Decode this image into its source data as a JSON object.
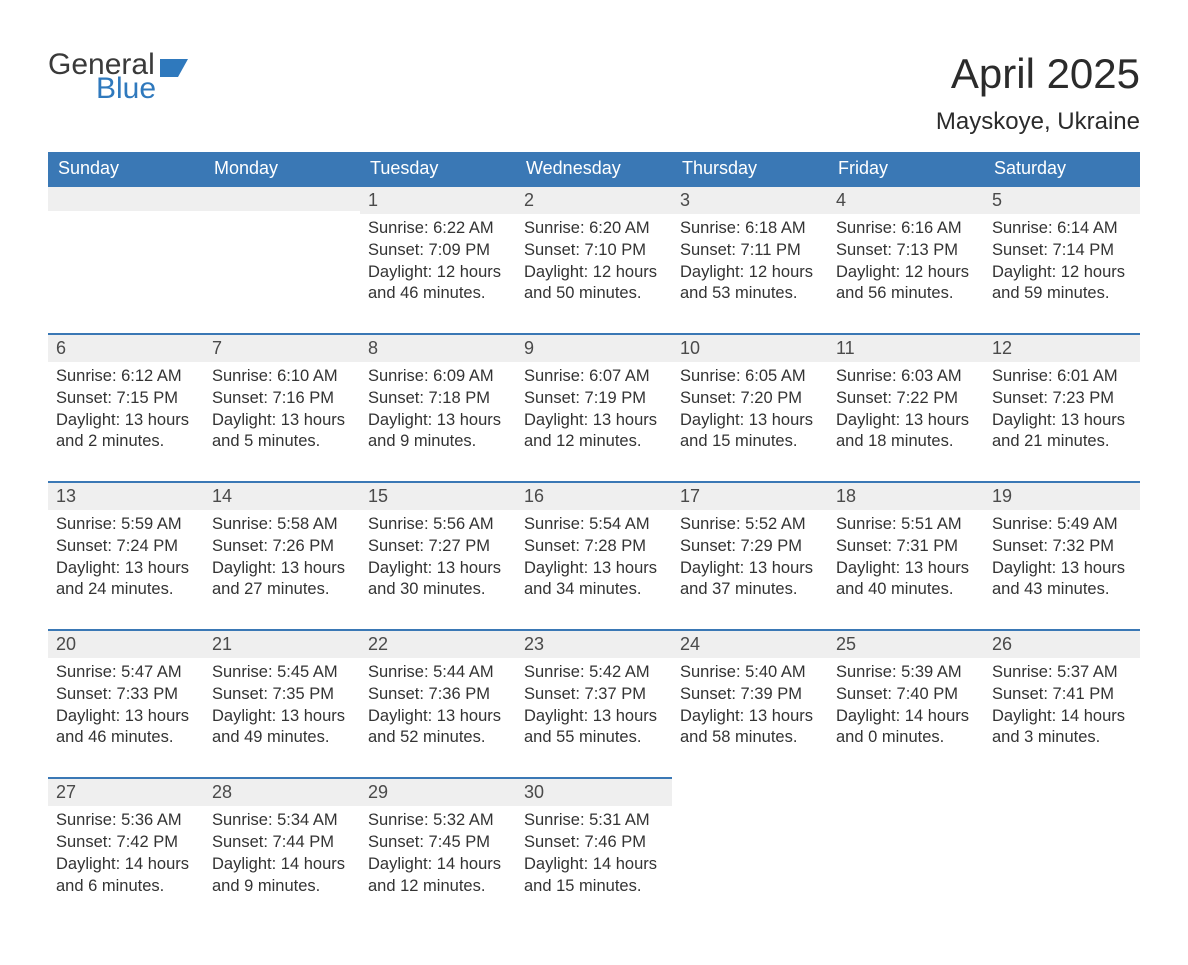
{
  "brand": {
    "word1": "General",
    "word2": "Blue"
  },
  "title": "April 2025",
  "location": "Mayskoye, Ukraine",
  "colors": {
    "header_bg": "#3a78b5",
    "header_text": "#ffffff",
    "daynum_bar_bg": "#efefef",
    "daynum_bar_border": "#3a78b5",
    "body_text": "#333333",
    "logo_general": "#3a3a3a",
    "logo_blue": "#2f79bd",
    "page_bg": "#ffffff"
  },
  "day_headers": [
    "Sunday",
    "Monday",
    "Tuesday",
    "Wednesday",
    "Thursday",
    "Friday",
    "Saturday"
  ],
  "weeks": [
    [
      {
        "n": "",
        "lines": []
      },
      {
        "n": "",
        "lines": []
      },
      {
        "n": "1",
        "lines": [
          "Sunrise: 6:22 AM",
          "Sunset: 7:09 PM",
          "Daylight: 12 hours and 46 minutes."
        ]
      },
      {
        "n": "2",
        "lines": [
          "Sunrise: 6:20 AM",
          "Sunset: 7:10 PM",
          "Daylight: 12 hours and 50 minutes."
        ]
      },
      {
        "n": "3",
        "lines": [
          "Sunrise: 6:18 AM",
          "Sunset: 7:11 PM",
          "Daylight: 12 hours and 53 minutes."
        ]
      },
      {
        "n": "4",
        "lines": [
          "Sunrise: 6:16 AM",
          "Sunset: 7:13 PM",
          "Daylight: 12 hours and 56 minutes."
        ]
      },
      {
        "n": "5",
        "lines": [
          "Sunrise: 6:14 AM",
          "Sunset: 7:14 PM",
          "Daylight: 12 hours and 59 minutes."
        ]
      }
    ],
    [
      {
        "n": "6",
        "lines": [
          "Sunrise: 6:12 AM",
          "Sunset: 7:15 PM",
          "Daylight: 13 hours and 2 minutes."
        ]
      },
      {
        "n": "7",
        "lines": [
          "Sunrise: 6:10 AM",
          "Sunset: 7:16 PM",
          "Daylight: 13 hours and 5 minutes."
        ]
      },
      {
        "n": "8",
        "lines": [
          "Sunrise: 6:09 AM",
          "Sunset: 7:18 PM",
          "Daylight: 13 hours and 9 minutes."
        ]
      },
      {
        "n": "9",
        "lines": [
          "Sunrise: 6:07 AM",
          "Sunset: 7:19 PM",
          "Daylight: 13 hours and 12 minutes."
        ]
      },
      {
        "n": "10",
        "lines": [
          "Sunrise: 6:05 AM",
          "Sunset: 7:20 PM",
          "Daylight: 13 hours and 15 minutes."
        ]
      },
      {
        "n": "11",
        "lines": [
          "Sunrise: 6:03 AM",
          "Sunset: 7:22 PM",
          "Daylight: 13 hours and 18 minutes."
        ]
      },
      {
        "n": "12",
        "lines": [
          "Sunrise: 6:01 AM",
          "Sunset: 7:23 PM",
          "Daylight: 13 hours and 21 minutes."
        ]
      }
    ],
    [
      {
        "n": "13",
        "lines": [
          "Sunrise: 5:59 AM",
          "Sunset: 7:24 PM",
          "Daylight: 13 hours and 24 minutes."
        ]
      },
      {
        "n": "14",
        "lines": [
          "Sunrise: 5:58 AM",
          "Sunset: 7:26 PM",
          "Daylight: 13 hours and 27 minutes."
        ]
      },
      {
        "n": "15",
        "lines": [
          "Sunrise: 5:56 AM",
          "Sunset: 7:27 PM",
          "Daylight: 13 hours and 30 minutes."
        ]
      },
      {
        "n": "16",
        "lines": [
          "Sunrise: 5:54 AM",
          "Sunset: 7:28 PM",
          "Daylight: 13 hours and 34 minutes."
        ]
      },
      {
        "n": "17",
        "lines": [
          "Sunrise: 5:52 AM",
          "Sunset: 7:29 PM",
          "Daylight: 13 hours and 37 minutes."
        ]
      },
      {
        "n": "18",
        "lines": [
          "Sunrise: 5:51 AM",
          "Sunset: 7:31 PM",
          "Daylight: 13 hours and 40 minutes."
        ]
      },
      {
        "n": "19",
        "lines": [
          "Sunrise: 5:49 AM",
          "Sunset: 7:32 PM",
          "Daylight: 13 hours and 43 minutes."
        ]
      }
    ],
    [
      {
        "n": "20",
        "lines": [
          "Sunrise: 5:47 AM",
          "Sunset: 7:33 PM",
          "Daylight: 13 hours and 46 minutes."
        ]
      },
      {
        "n": "21",
        "lines": [
          "Sunrise: 5:45 AM",
          "Sunset: 7:35 PM",
          "Daylight: 13 hours and 49 minutes."
        ]
      },
      {
        "n": "22",
        "lines": [
          "Sunrise: 5:44 AM",
          "Sunset: 7:36 PM",
          "Daylight: 13 hours and 52 minutes."
        ]
      },
      {
        "n": "23",
        "lines": [
          "Sunrise: 5:42 AM",
          "Sunset: 7:37 PM",
          "Daylight: 13 hours and 55 minutes."
        ]
      },
      {
        "n": "24",
        "lines": [
          "Sunrise: 5:40 AM",
          "Sunset: 7:39 PM",
          "Daylight: 13 hours and 58 minutes."
        ]
      },
      {
        "n": "25",
        "lines": [
          "Sunrise: 5:39 AM",
          "Sunset: 7:40 PM",
          "Daylight: 14 hours and 0 minutes."
        ]
      },
      {
        "n": "26",
        "lines": [
          "Sunrise: 5:37 AM",
          "Sunset: 7:41 PM",
          "Daylight: 14 hours and 3 minutes."
        ]
      }
    ],
    [
      {
        "n": "27",
        "lines": [
          "Sunrise: 5:36 AM",
          "Sunset: 7:42 PM",
          "Daylight: 14 hours and 6 minutes."
        ]
      },
      {
        "n": "28",
        "lines": [
          "Sunrise: 5:34 AM",
          "Sunset: 7:44 PM",
          "Daylight: 14 hours and 9 minutes."
        ]
      },
      {
        "n": "29",
        "lines": [
          "Sunrise: 5:32 AM",
          "Sunset: 7:45 PM",
          "Daylight: 14 hours and 12 minutes."
        ]
      },
      {
        "n": "30",
        "lines": [
          "Sunrise: 5:31 AM",
          "Sunset: 7:46 PM",
          "Daylight: 14 hours and 15 minutes."
        ]
      },
      {
        "n": "",
        "lines": []
      },
      {
        "n": "",
        "lines": []
      },
      {
        "n": "",
        "lines": []
      }
    ]
  ]
}
